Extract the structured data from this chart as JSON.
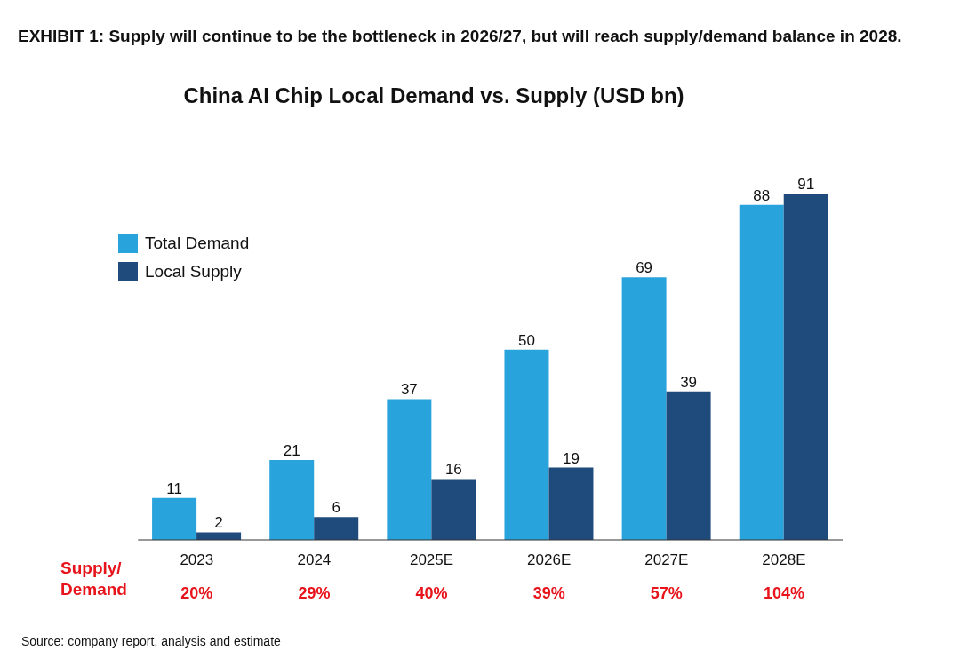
{
  "chart_data": {
    "type": "bar",
    "title": "EXHIBIT 1: Supply will continue to be the bottleneck in 2026/27, but will reach supply/demand balance in 2028.",
    "subtitle": "China AI Chip Local Demand vs. Supply (USD bn)",
    "categories": [
      "2023",
      "2024",
      "2025E",
      "2026E",
      "2027E",
      "2028E"
    ],
    "series": [
      {
        "name": "Total Demand",
        "color": "#29a3dc",
        "values": [
          11,
          21,
          37,
          50,
          69,
          88
        ]
      },
      {
        "name": "Local Supply",
        "color": "#1f4a7c",
        "values": [
          2,
          6,
          16,
          19,
          39,
          91
        ]
      }
    ],
    "data_labels": true,
    "legend": "top left",
    "grid": false,
    "annotations": [
      "Supply/ Demand",
      "20%",
      "29%",
      "40%",
      "39%",
      "57%",
      "104%",
      "Source: company report, analysis and estimate"
    ]
  }
}
